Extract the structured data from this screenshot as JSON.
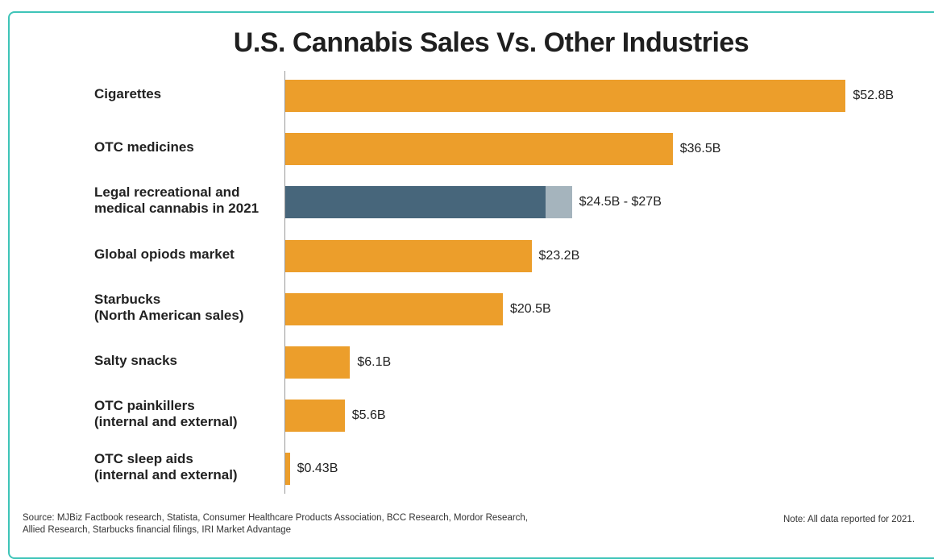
{
  "chart_data": {
    "type": "bar",
    "orientation": "horizontal",
    "title": "U.S. Cannabis Sales Vs. Other Industries",
    "unit": "billion USD",
    "categories": [
      "Cigarettes",
      "OTC medicines",
      "Legal recreational and\nmedical cannabis in 2021",
      "Global opiods market",
      "Starbucks\n(North American sales)",
      "Salty snacks",
      "OTC painkillers\n(internal and external)",
      "OTC sleep aids\n(internal and external)"
    ],
    "values": [
      52.8,
      36.5,
      24.5,
      23.2,
      20.5,
      6.1,
      5.6,
      0.43
    ],
    "range_high": [
      null,
      null,
      27,
      null,
      null,
      null,
      null,
      null
    ],
    "value_labels": [
      "$52.8B",
      "$36.5B",
      "$24.5B - $27B",
      "$23.2B",
      "$20.5B",
      "$6.1B",
      "$5.6B",
      "$0.43B"
    ],
    "highlight_index": 2,
    "colors": {
      "default_bar": "#ec9e2b",
      "highlight_bar": "#47667b",
      "range_extension": "#a5b4bd"
    },
    "grid": false
  },
  "footer": {
    "source": "Source: MJBiz Factbook research, Statista, Consumer Healthcare Products Association, BCC Research, Mordor Research, Allied Research, Starbucks financial filings, IRI Market Advantage",
    "note": "Note: All data reported for 2021."
  }
}
